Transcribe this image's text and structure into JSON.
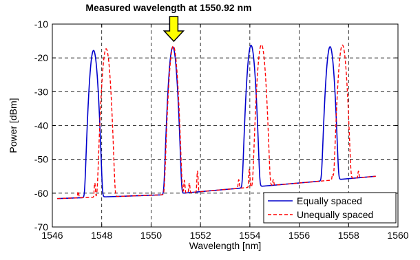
{
  "chart_data": {
    "type": "line",
    "title": "",
    "xlabel": "Wavelength [nm]",
    "ylabel": "Power [dBm]",
    "xlim": [
      1546,
      1560
    ],
    "ylim": [
      -70,
      -10
    ],
    "xticks": [
      1546,
      1548,
      1550,
      1552,
      1554,
      1556,
      1558,
      1560
    ],
    "yticks": [
      -70,
      -60,
      -50,
      -40,
      -30,
      -20,
      -10
    ],
    "grid": true,
    "grid_style": "dashed",
    "legend_position": "bottom-right",
    "annotation": {
      "text": "Measured wavelength at 1550.92 nm",
      "x": 1550.92,
      "arrow_color": "#ffff00"
    },
    "series": [
      {
        "name": "Equally spaced",
        "color": "#0000cc",
        "dash": "solid",
        "baseline": [
          [
            1546.2,
            -61.6
          ],
          [
            1551.2,
            -60.3
          ],
          [
            1551.3,
            -60.0
          ],
          [
            1559.1,
            -55.0
          ]
        ],
        "peaks": [
          {
            "x": 1547.67,
            "y": -17.8,
            "width": 0.08
          },
          {
            "x": 1550.88,
            "y": -16.8,
            "width": 0.08
          },
          {
            "x": 1554.05,
            "y": -16.3,
            "width": 0.08
          },
          {
            "x": 1557.25,
            "y": -16.7,
            "width": 0.08
          }
        ],
        "side_bumps": [
          {
            "x": 1554.0,
            "y": -53.5,
            "width": 0.02
          }
        ]
      },
      {
        "name": "Unequally spaced",
        "color": "#ff0000",
        "dash": "dashed",
        "baseline": [
          [
            1546.2,
            -61.6
          ],
          [
            1551.2,
            -60.3
          ],
          [
            1551.3,
            -60.0
          ],
          [
            1559.1,
            -55.0
          ]
        ],
        "peaks": [
          {
            "x": 1548.18,
            "y": -17.3,
            "width": 0.08
          },
          {
            "x": 1550.9,
            "y": -16.5,
            "width": 0.08
          },
          {
            "x": 1554.47,
            "y": -16.1,
            "width": 0.08
          },
          {
            "x": 1557.75,
            "y": -16.2,
            "width": 0.08
          }
        ],
        "side_bumps": [
          {
            "x": 1547.05,
            "y": -59.5,
            "width": 0.02
          },
          {
            "x": 1547.72,
            "y": -57.0,
            "width": 0.02
          },
          {
            "x": 1551.35,
            "y": -56.2,
            "width": 0.02
          },
          {
            "x": 1551.55,
            "y": -57.0,
            "width": 0.02
          },
          {
            "x": 1551.88,
            "y": -53.5,
            "width": 0.02
          },
          {
            "x": 1553.55,
            "y": -56.0,
            "width": 0.02
          },
          {
            "x": 1553.98,
            "y": -53.0,
            "width": 0.02
          },
          {
            "x": 1554.95,
            "y": -56.0,
            "width": 0.02
          },
          {
            "x": 1557.35,
            "y": -54.5,
            "width": 0.02
          },
          {
            "x": 1558.4,
            "y": -53.5,
            "width": 0.02
          }
        ]
      }
    ]
  }
}
